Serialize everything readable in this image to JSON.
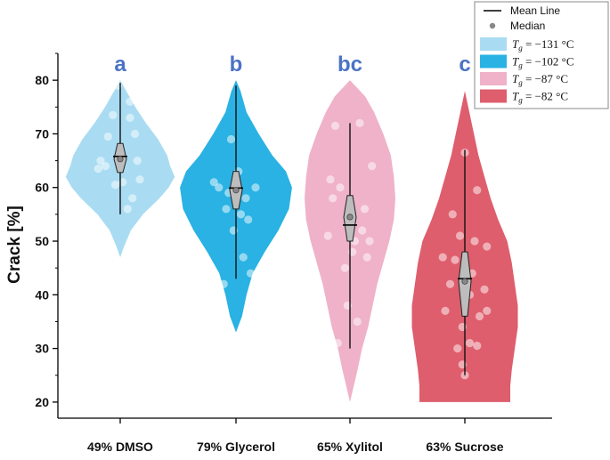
{
  "chart_data": {
    "type": "violin",
    "ylabel": "Crack [%]",
    "ylim": [
      17,
      85
    ],
    "yticks": [
      20,
      30,
      40,
      50,
      60,
      70,
      80
    ],
    "grid": false,
    "legend": {
      "placement": "top-right",
      "mean_line_label": "Mean Line",
      "median_label": "Median",
      "entries": [
        {
          "math": "T",
          "sub": "g",
          "rest": " = −131 °C",
          "color": "#a9dcf2"
        },
        {
          "math": "T",
          "sub": "g",
          "rest": " = −102 °C",
          "color": "#29b2e3"
        },
        {
          "math": "T",
          "sub": "g",
          "rest": " = −87 °C",
          "color": "#efb2c9"
        },
        {
          "math": "T",
          "sub": "g",
          "rest": " = −82 °C",
          "color": "#de5e6d"
        }
      ]
    },
    "series": [
      {
        "name": "49% DMSO",
        "letter": "a",
        "color": "#a9dcf2",
        "min": 55,
        "max": 79.5,
        "q1": 63.3,
        "q3": 67.7,
        "median": 65.3,
        "mean": 65.8,
        "kde": [
          [
            47,
            0
          ],
          [
            49,
            5
          ],
          [
            52,
            14
          ],
          [
            55,
            30
          ],
          [
            58,
            52
          ],
          [
            60,
            64
          ],
          [
            62,
            72
          ],
          [
            64,
            66
          ],
          [
            66,
            62
          ],
          [
            69,
            50
          ],
          [
            72,
            34
          ],
          [
            75,
            20
          ],
          [
            78,
            8
          ],
          [
            80,
            0
          ]
        ],
        "points": [
          [
            -0.3,
            64
          ],
          [
            -0.05,
            79
          ],
          [
            0.2,
            76
          ],
          [
            -0.45,
            63.5
          ],
          [
            0.4,
            61.5
          ],
          [
            -0.25,
            69.5
          ],
          [
            0.3,
            70
          ],
          [
            -0.15,
            73.5
          ],
          [
            0.2,
            73
          ],
          [
            0.05,
            61
          ],
          [
            0.25,
            58
          ],
          [
            -0.1,
            60.5
          ],
          [
            0.35,
            65
          ],
          [
            -0.4,
            65
          ],
          [
            0.15,
            56
          ]
        ]
      },
      {
        "name": "79% Glycerol",
        "letter": "b",
        "color": "#29b2e3",
        "min": 43,
        "max": 79,
        "q1": 56.5,
        "q3": 62.5,
        "median": 59.5,
        "mean": 59.9,
        "kde": [
          [
            33,
            0
          ],
          [
            36,
            8
          ],
          [
            40,
            14
          ],
          [
            44,
            22
          ],
          [
            48,
            38
          ],
          [
            52,
            56
          ],
          [
            56,
            70
          ],
          [
            60,
            74
          ],
          [
            63,
            66
          ],
          [
            66,
            48
          ],
          [
            70,
            30
          ],
          [
            74,
            14
          ],
          [
            78,
            6
          ],
          [
            80,
            0
          ]
        ],
        "points": [
          [
            -0.45,
            61
          ],
          [
            -0.1,
            69
          ],
          [
            0.4,
            60
          ],
          [
            -0.2,
            56
          ],
          [
            0.25,
            54
          ],
          [
            -0.05,
            52
          ],
          [
            0.15,
            47
          ],
          [
            -0.25,
            42
          ],
          [
            0.3,
            44
          ],
          [
            0.05,
            63
          ],
          [
            -0.35,
            60
          ],
          [
            0.1,
            55
          ],
          [
            0.2,
            58
          ],
          [
            -0.15,
            59
          ]
        ]
      },
      {
        "name": "65% Xylitol",
        "letter": "bc",
        "color": "#efb2c9",
        "min": 30,
        "max": 72,
        "q1": 50.5,
        "q3": 58,
        "median": 54.5,
        "mean": 53,
        "kde": [
          [
            20,
            0
          ],
          [
            23,
            5
          ],
          [
            26,
            10
          ],
          [
            30,
            16
          ],
          [
            34,
            24
          ],
          [
            38,
            30
          ],
          [
            42,
            36
          ],
          [
            46,
            44
          ],
          [
            50,
            52
          ],
          [
            54,
            58
          ],
          [
            58,
            60
          ],
          [
            62,
            58
          ],
          [
            66,
            54
          ],
          [
            70,
            44
          ],
          [
            74,
            32
          ],
          [
            77,
            20
          ],
          [
            80,
            0
          ]
        ],
        "points": [
          [
            -0.3,
            71.5
          ],
          [
            0.2,
            72
          ],
          [
            -0.4,
            61.5
          ],
          [
            0.45,
            64
          ],
          [
            -0.2,
            60
          ],
          [
            0.3,
            56
          ],
          [
            -0.45,
            51
          ],
          [
            0.05,
            48
          ],
          [
            0.35,
            47
          ],
          [
            -0.1,
            45
          ],
          [
            0.25,
            52
          ],
          [
            -0.05,
            38
          ],
          [
            0.15,
            35
          ],
          [
            -0.25,
            31
          ],
          [
            0.1,
            50
          ],
          [
            0.4,
            50
          ],
          [
            -0.35,
            58
          ]
        ]
      },
      {
        "name": "63% Sucrose",
        "letter": "c",
        "color": "#de5e6d",
        "min": 25,
        "max": 67,
        "q1": 36.5,
        "q3": 47.5,
        "median": 42.5,
        "mean": 43,
        "kde": [
          [
            20,
            60
          ],
          [
            23,
            60
          ],
          [
            26,
            62
          ],
          [
            30,
            66
          ],
          [
            34,
            70
          ],
          [
            38,
            70
          ],
          [
            42,
            66
          ],
          [
            46,
            62
          ],
          [
            50,
            56
          ],
          [
            54,
            44
          ],
          [
            58,
            34
          ],
          [
            62,
            26
          ],
          [
            66,
            18
          ],
          [
            70,
            12
          ],
          [
            74,
            6
          ],
          [
            78,
            0
          ]
        ],
        "points": [
          [
            0,
            66.5
          ],
          [
            -0.25,
            55
          ],
          [
            0.25,
            59.5
          ],
          [
            -0.1,
            51
          ],
          [
            0.45,
            49
          ],
          [
            -0.45,
            47
          ],
          [
            -0.2,
            46.5
          ],
          [
            0.15,
            44
          ],
          [
            0.4,
            41
          ],
          [
            -0.4,
            37
          ],
          [
            -0.05,
            34
          ],
          [
            0.3,
            36
          ],
          [
            0.1,
            31
          ],
          [
            -0.15,
            30
          ],
          [
            0.45,
            37
          ],
          [
            0,
            25
          ],
          [
            -0.05,
            27
          ],
          [
            0.25,
            30.5
          ],
          [
            0.2,
            50
          ],
          [
            -0.3,
            42
          ],
          [
            0.1,
            40
          ]
        ]
      }
    ]
  }
}
